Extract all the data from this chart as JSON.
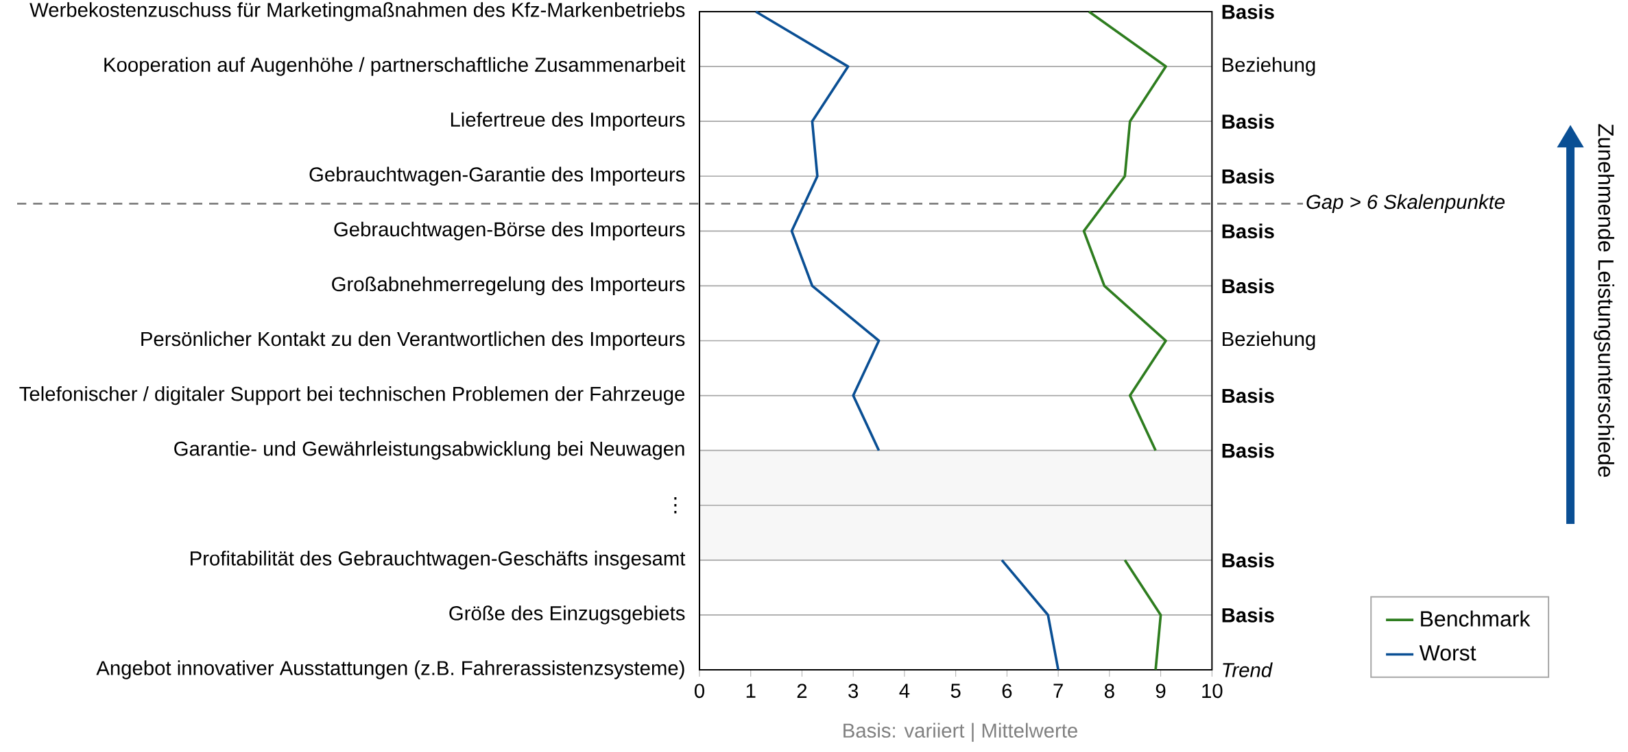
{
  "chart_data": {
    "type": "line",
    "orientation": "horizontal",
    "categories": [
      "Werbekostenzuschuss für Marketingmaßnahmen des Kfz-Markenbetriebs",
      "Kooperation auf Augenhöhe / partnerschaftliche Zusammenarbeit",
      "Liefertreue des Importeurs",
      "Gebrauchtwagen-Garantie des Importeurs",
      "Gebrauchtwagen-Börse des Importeurs",
      "Großabnehmerregelung des Importeurs",
      "Persönlicher Kontakt zu den Verantwortlichen des Importeurs",
      "Telefonischer / digitaler Support bei technischen Problemen der Fahrzeuge",
      "Garantie- und Gewährleistungsabwicklung bei Neuwagen",
      "⋮",
      "Profitabilität des Gebrauchtwagen-Geschäfts insgesamt",
      "Größe des Einzugsgebiets",
      "Angebot innovativer Ausstattungen (z.B. Fahrerassistenzsysteme)"
    ],
    "series": [
      {
        "name": "Benchmark",
        "color": "#2e7d1f",
        "values": [
          7.6,
          9.1,
          8.4,
          8.3,
          7.5,
          7.9,
          9.1,
          8.4,
          8.9,
          null,
          8.3,
          9.0,
          8.9
        ]
      },
      {
        "name": "Worst",
        "color": "#0a4f94",
        "values": [
          1.1,
          2.9,
          2.2,
          2.3,
          1.8,
          2.2,
          3.5,
          3.0,
          3.5,
          null,
          5.9,
          6.8,
          7.0
        ]
      }
    ],
    "xlim": [
      0,
      10
    ],
    "xticks": [
      0,
      1,
      2,
      3,
      4,
      5,
      6,
      7,
      8,
      9,
      10
    ],
    "grid": "y",
    "legend": "right",
    "marker": "none",
    "line_style": "solid",
    "annotations": [
      "**Basis**",
      "Beziehung",
      "**Basis**",
      "**Basis**",
      "**Basis**",
      "**Basis**",
      "Beziehung",
      "**Basis**",
      "**Basis**",
      "**Basis**",
      "**Basis**",
      "*Trend*",
      "Gap > 6 Skalenpunkte",
      "Zunehmende Leistungsunterschiede",
      "Basis: variiert | Mittelwerte"
    ]
  }
}
